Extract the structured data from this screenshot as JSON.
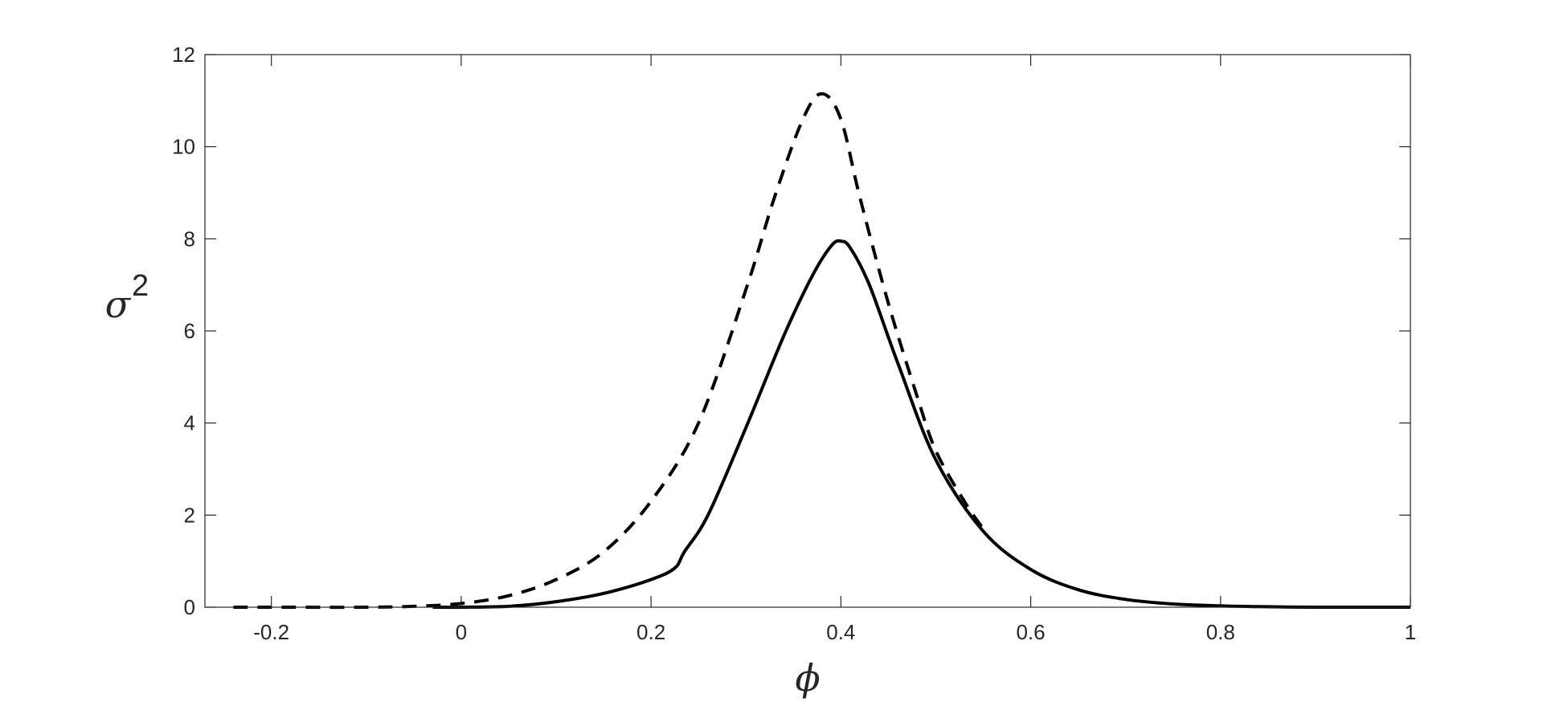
{
  "chart_data": {
    "type": "line",
    "title": "",
    "xlabel": "ϕ",
    "ylabel": "σ",
    "ylabel_superscript": "2",
    "xlim": [
      -0.27,
      1.0
    ],
    "ylim": [
      0,
      12
    ],
    "x_ticks": [
      -0.2,
      0,
      0.2,
      0.4,
      0.6,
      0.8,
      1
    ],
    "x_tick_labels": [
      "-0.2",
      "0",
      "0.2",
      "0.4",
      "0.6",
      "0.8",
      "1"
    ],
    "y_ticks": [
      0,
      2,
      4,
      6,
      8,
      10,
      12
    ],
    "y_tick_labels": [
      "0",
      "2",
      "4",
      "6",
      "8",
      "10",
      "12"
    ],
    "grid": false,
    "legend": "none",
    "series": [
      {
        "style": "solid",
        "color": "#000000",
        "x": [
          -0.03,
          0.0,
          0.05,
          0.1,
          0.15,
          0.2,
          0.225,
          0.235,
          0.26,
          0.3,
          0.34,
          0.37,
          0.39,
          0.4,
          0.41,
          0.43,
          0.46,
          0.5,
          0.55,
          0.6,
          0.65,
          0.7,
          0.75,
          0.8,
          0.85,
          0.9,
          1.0
        ],
        "y": [
          0.0,
          0.0,
          0.02,
          0.12,
          0.3,
          0.6,
          0.85,
          1.2,
          2.0,
          3.9,
          5.9,
          7.2,
          7.85,
          7.95,
          7.8,
          7.0,
          5.3,
          3.2,
          1.65,
          0.82,
          0.38,
          0.17,
          0.07,
          0.03,
          0.01,
          0.0,
          0.0
        ]
      },
      {
        "style": "dashed",
        "color": "#000000",
        "x": [
          -0.24,
          -0.2,
          -0.1,
          -0.05,
          0.0,
          0.05,
          0.1,
          0.15,
          0.2,
          0.25,
          0.3,
          0.33,
          0.36,
          0.38,
          0.4,
          0.42,
          0.45,
          0.48,
          0.5,
          0.53,
          0.55
        ],
        "y": [
          0.0,
          0.0,
          0.0,
          0.02,
          0.08,
          0.25,
          0.6,
          1.2,
          2.3,
          4.0,
          6.9,
          8.9,
          10.6,
          11.15,
          10.6,
          8.9,
          6.6,
          4.6,
          3.4,
          2.3,
          1.7
        ]
      }
    ]
  }
}
